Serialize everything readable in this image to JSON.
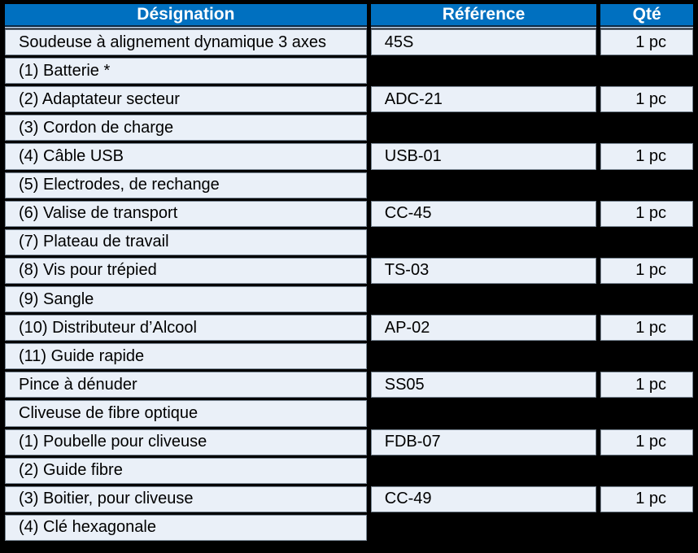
{
  "table": {
    "columns": [
      "Désignation",
      "Référence",
      "Qté"
    ],
    "rows": [
      {
        "designation": "Soudeuse à alignement dynamique 3 axes",
        "reference": "45S",
        "qty": "1 pc"
      },
      {
        "designation": "(1) Batterie *",
        "reference": "",
        "qty": ""
      },
      {
        "designation": "(2) Adaptateur secteur",
        "reference": "ADC-21",
        "qty": "1 pc"
      },
      {
        "designation": "(3) Cordon de charge",
        "reference": "",
        "qty": ""
      },
      {
        "designation": "(4) Câble USB",
        "reference": "USB-01",
        "qty": "1 pc"
      },
      {
        "designation": "(5) Electrodes, de rechange",
        "reference": "",
        "qty": ""
      },
      {
        "designation": "(6) Valise de transport",
        "reference": "CC-45",
        "qty": "1 pc"
      },
      {
        "designation": "(7) Plateau de travail",
        "reference": "",
        "qty": ""
      },
      {
        "designation": "(8) Vis pour trépied",
        "reference": "TS-03",
        "qty": "1 pc"
      },
      {
        "designation": "(9) Sangle",
        "reference": "",
        "qty": ""
      },
      {
        "designation": "(10) Distributeur d’Alcool",
        "reference": "AP-02",
        "qty": "1 pc"
      },
      {
        "designation": "(11) Guide rapide",
        "reference": "",
        "qty": ""
      },
      {
        "designation": "Pince à dénuder",
        "reference": "SS05",
        "qty": "1 pc"
      },
      {
        "designation": "Cliveuse de fibre optique",
        "reference": "",
        "qty": ""
      },
      {
        "designation": "(1) Poubelle pour cliveuse",
        "reference": "FDB-07",
        "qty": "1 pc"
      },
      {
        "designation": "(2) Guide fibre",
        "reference": "",
        "qty": ""
      },
      {
        "designation": "(3) Boitier, pour cliveuse",
        "reference": "CC-49",
        "qty": "1 pc"
      },
      {
        "designation": "(4) Clé hexagonale",
        "reference": "",
        "qty": ""
      }
    ]
  },
  "colors": {
    "header_bg": "#0070C0",
    "header_text": "#FFFFFF",
    "cell_bg": "#EAF0F8",
    "frame": "#000000"
  }
}
